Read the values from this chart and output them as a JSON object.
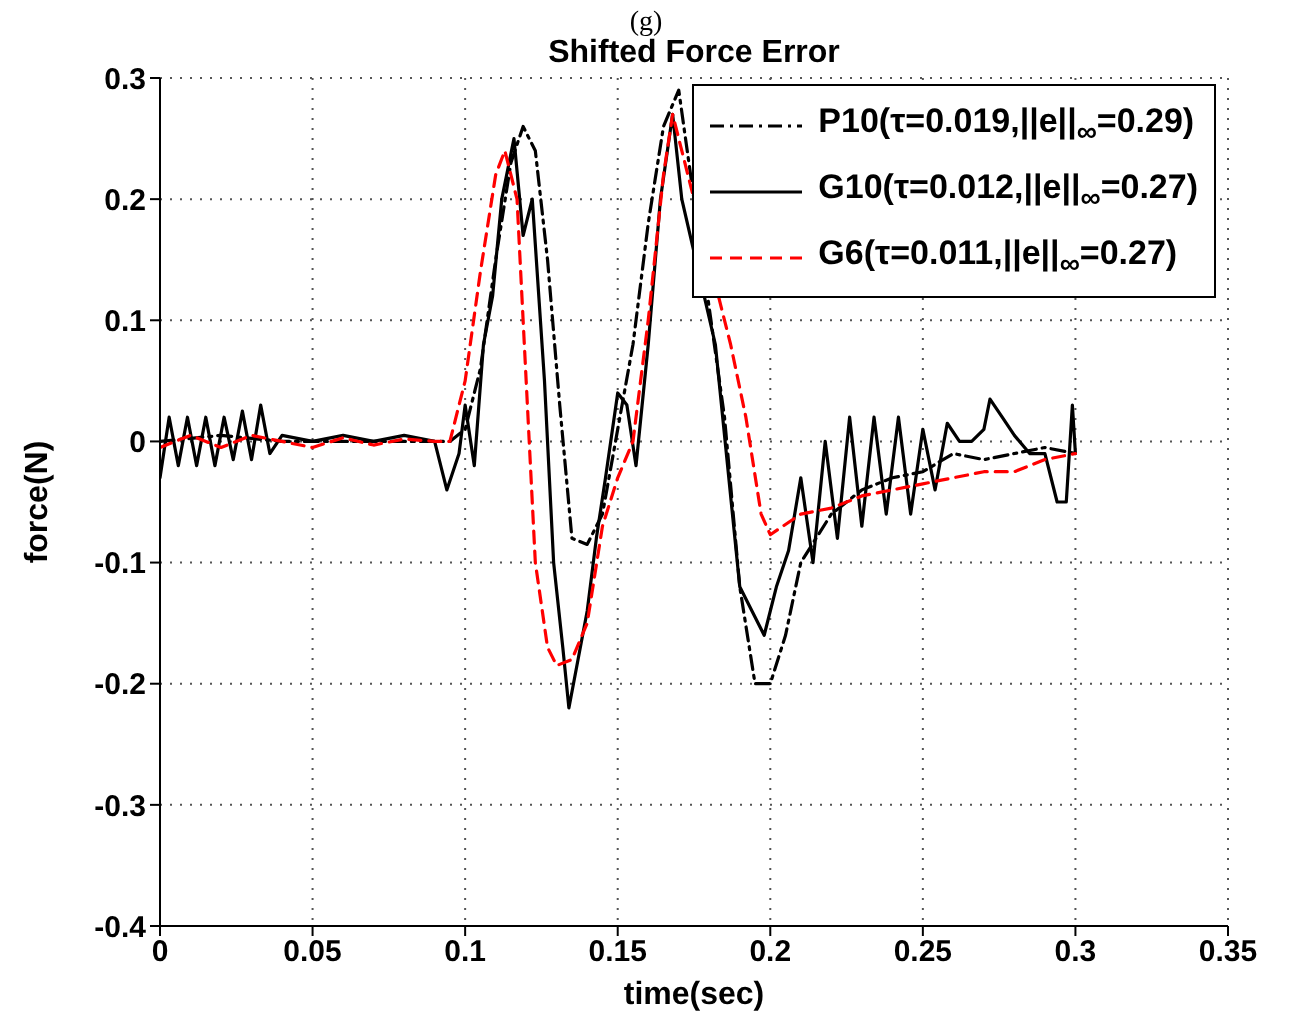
{
  "chart_data": {
    "type": "line",
    "title": "Shifted Force Error",
    "annotations": [
      "(g)"
    ],
    "xlabel": "time(sec)",
    "ylabel": "force(N)",
    "xlim": [
      0,
      0.35
    ],
    "xticks": [
      0,
      0.05,
      0.1,
      0.15,
      0.2,
      0.25,
      0.3,
      0.35
    ],
    "ylim": [
      -0.4,
      0.3
    ],
    "yticks": [
      -0.4,
      -0.3,
      -0.2,
      -0.1,
      0,
      0.1,
      0.2,
      0.3
    ],
    "grid": true,
    "legend": "top right",
    "marker": "none",
    "series": [
      {
        "name": "P10(τ=0.019,||e||$_{∞}$=0.29)",
        "color": "#000000",
        "line_style": "dashdot",
        "x": [
          0,
          0.02,
          0.04,
          0.06,
          0.08,
          0.095,
          0.1,
          0.105,
          0.11,
          0.115,
          0.119,
          0.123,
          0.127,
          0.131,
          0.135,
          0.14,
          0.145,
          0.15,
          0.155,
          0.16,
          0.165,
          0.17,
          0.185,
          0.19,
          0.195,
          0.2,
          0.205,
          0.21,
          0.22,
          0.23,
          0.24,
          0.25,
          0.26,
          0.27,
          0.28,
          0.29,
          0.3
        ],
        "values": [
          0,
          0.005,
          0,
          0,
          0,
          0,
          0.01,
          0.06,
          0.15,
          0.23,
          0.26,
          0.24,
          0.15,
          0.03,
          -0.08,
          -0.085,
          -0.06,
          0.01,
          0.08,
          0.18,
          0.26,
          0.29,
          0.02,
          -0.12,
          -0.2,
          -0.2,
          -0.16,
          -0.1,
          -0.06,
          -0.04,
          -0.03,
          -0.025,
          -0.01,
          -0.015,
          -0.01,
          -0.005,
          -0.01
        ]
      },
      {
        "name": "G10(τ=0.012,||e||$_{∞}$=0.27)",
        "color": "#000000",
        "line_style": "solid",
        "x": [
          0,
          0.003,
          0.006,
          0.009,
          0.012,
          0.015,
          0.018,
          0.021,
          0.024,
          0.027,
          0.03,
          0.033,
          0.036,
          0.04,
          0.05,
          0.06,
          0.07,
          0.08,
          0.09,
          0.094,
          0.098,
          0.1,
          0.103,
          0.106,
          0.109,
          0.112,
          0.116,
          0.119,
          0.122,
          0.126,
          0.129,
          0.132,
          0.134,
          0.137,
          0.14,
          0.143,
          0.146,
          0.15,
          0.153,
          0.156,
          0.16,
          0.164,
          0.168,
          0.171,
          0.182,
          0.186,
          0.19,
          0.194,
          0.198,
          0.202,
          0.206,
          0.21,
          0.214,
          0.218,
          0.222,
          0.226,
          0.23,
          0.234,
          0.238,
          0.242,
          0.246,
          0.25,
          0.254,
          0.258,
          0.262,
          0.266,
          0.27,
          0.272,
          0.276,
          0.28,
          0.285,
          0.29,
          0.294,
          0.297,
          0.299,
          0.3
        ],
        "values": [
          -0.03,
          0.02,
          -0.02,
          0.02,
          -0.02,
          0.02,
          -0.02,
          0.02,
          -0.015,
          0.025,
          -0.015,
          0.03,
          -0.01,
          0.005,
          0,
          0.005,
          0,
          0.005,
          0,
          -0.04,
          -0.01,
          0.03,
          -0.02,
          0.08,
          0.12,
          0.2,
          0.25,
          0.17,
          0.2,
          0.05,
          -0.1,
          -0.17,
          -0.22,
          -0.18,
          -0.14,
          -0.08,
          -0.03,
          0.04,
          0.03,
          -0.02,
          0.08,
          0.2,
          0.27,
          0.2,
          0.08,
          -0.02,
          -0.12,
          -0.14,
          -0.16,
          -0.12,
          -0.09,
          -0.03,
          -0.1,
          0,
          -0.08,
          0.02,
          -0.07,
          0.02,
          -0.06,
          0.02,
          -0.06,
          0.01,
          -0.04,
          0.015,
          0,
          0,
          0.01,
          0.035,
          0.02,
          0.005,
          -0.01,
          -0.01,
          -0.05,
          -0.05,
          0.03,
          -0.01
        ]
      },
      {
        "name": "G6(τ=0.011,||e||$_{∞}$=0.27)",
        "color": "#ff0000",
        "line_style": "dashed",
        "x": [
          0,
          0.01,
          0.02,
          0.03,
          0.04,
          0.05,
          0.06,
          0.07,
          0.08,
          0.09,
          0.095,
          0.1,
          0.105,
          0.11,
          0.113,
          0.117,
          0.12,
          0.123,
          0.127,
          0.13,
          0.135,
          0.14,
          0.145,
          0.15,
          0.155,
          0.16,
          0.165,
          0.168,
          0.187,
          0.192,
          0.197,
          0.2,
          0.21,
          0.22,
          0.23,
          0.24,
          0.25,
          0.26,
          0.27,
          0.28,
          0.29,
          0.3
        ],
        "values": [
          -0.005,
          0.005,
          -0.005,
          0.005,
          0,
          -0.005,
          0.003,
          -0.003,
          0.002,
          0,
          0,
          0.05,
          0.14,
          0.22,
          0.24,
          0.2,
          0.05,
          -0.1,
          -0.17,
          -0.185,
          -0.18,
          -0.15,
          -0.07,
          -0.03,
          0,
          0.1,
          0.22,
          0.27,
          0.08,
          0.02,
          -0.06,
          -0.077,
          -0.06,
          -0.055,
          -0.045,
          -0.04,
          -0.035,
          -0.03,
          -0.025,
          -0.025,
          -0.015,
          -0.01
        ]
      }
    ]
  }
}
